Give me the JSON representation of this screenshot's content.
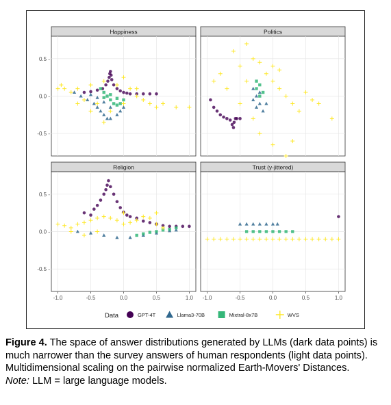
{
  "chart_data": {
    "type": "scatter",
    "panels": [
      {
        "title": "Happiness",
        "show_y_ticks": true,
        "show_x_ticks": false
      },
      {
        "title": "Politics",
        "show_y_ticks": false,
        "show_x_ticks": false
      },
      {
        "title": "Religion",
        "show_y_ticks": true,
        "show_x_ticks": true
      },
      {
        "title": "Trust (y-jittered)",
        "show_y_ticks": false,
        "show_x_ticks": true
      }
    ],
    "xlim": [
      -1.1,
      1.1
    ],
    "ylim": [
      -0.8,
      0.8
    ],
    "x_ticks": [
      {
        "value": -1.0,
        "label": "-1.0"
      },
      {
        "value": -0.5,
        "label": "-0.5"
      },
      {
        "value": 0.0,
        "label": "0.0"
      },
      {
        "value": 0.5,
        "label": "0.5"
      },
      {
        "value": 1.0,
        "label": "1.0"
      }
    ],
    "y_ticks": [
      {
        "value": 0.5,
        "label": "0.5 -"
      },
      {
        "value": 0.0,
        "label": "0.0 -"
      },
      {
        "value": -0.5,
        "label": "-0.5 -"
      }
    ],
    "grid": true,
    "legend": {
      "title": "Data",
      "position": "bottom",
      "entries": [
        {
          "label": "GPT-4T",
          "color": "#440154",
          "shape": "circle"
        },
        {
          "label": "Llama3-70B",
          "color": "#31688e",
          "shape": "triangle"
        },
        {
          "label": "Mixtral-8x7B",
          "color": "#35b779",
          "shape": "square"
        },
        {
          "label": "WVS",
          "color": "#fde725",
          "shape": "plus"
        }
      ]
    },
    "series": [
      {
        "name": "GPT-4T",
        "color": "#440154",
        "shape": "circle",
        "panels": {
          "Happiness": [
            [
              -0.6,
              0.05
            ],
            [
              -0.5,
              0.06
            ],
            [
              -0.4,
              0.08
            ],
            [
              -0.32,
              0.1
            ],
            [
              -0.27,
              0.15
            ],
            [
              -0.24,
              0.2
            ],
            [
              -0.22,
              0.25
            ],
            [
              -0.21,
              0.3
            ],
            [
              -0.2,
              0.33
            ],
            [
              -0.19,
              0.28
            ],
            [
              -0.18,
              0.22
            ],
            [
              -0.15,
              0.15
            ],
            [
              -0.1,
              0.1
            ],
            [
              -0.05,
              0.07
            ],
            [
              0,
              0.05
            ],
            [
              0.05,
              0.04
            ],
            [
              0.1,
              0.03
            ],
            [
              0.2,
              0.03
            ],
            [
              0.3,
              0.03
            ],
            [
              0.4,
              0.03
            ],
            [
              0.5,
              0.03
            ]
          ],
          "Politics": [
            [
              -0.95,
              -0.05
            ],
            [
              -0.9,
              -0.15
            ],
            [
              -0.85,
              -0.2
            ],
            [
              -0.8,
              -0.25
            ],
            [
              -0.75,
              -0.28
            ],
            [
              -0.7,
              -0.3
            ],
            [
              -0.65,
              -0.32
            ],
            [
              -0.62,
              -0.38
            ],
            [
              -0.6,
              -0.42
            ],
            [
              -0.59,
              -0.35
            ],
            [
              -0.57,
              -0.3
            ],
            [
              -0.55,
              -0.3
            ],
            [
              -0.5,
              -0.3
            ]
          ],
          "Religion": [
            [
              -0.6,
              0.25
            ],
            [
              -0.5,
              0.22
            ],
            [
              -0.45,
              0.3
            ],
            [
              -0.4,
              0.35
            ],
            [
              -0.35,
              0.42
            ],
            [
              -0.3,
              0.5
            ],
            [
              -0.27,
              0.56
            ],
            [
              -0.25,
              0.62
            ],
            [
              -0.23,
              0.68
            ],
            [
              -0.2,
              0.6
            ],
            [
              -0.15,
              0.5
            ],
            [
              -0.1,
              0.4
            ],
            [
              -0.05,
              0.32
            ],
            [
              0,
              0.26
            ],
            [
              0.05,
              0.22
            ],
            [
              0.1,
              0.2
            ],
            [
              0.2,
              0.18
            ],
            [
              0.3,
              0.14
            ],
            [
              0.4,
              0.12
            ],
            [
              0.5,
              0.1
            ],
            [
              0.6,
              0.08
            ],
            [
              0.7,
              0.07
            ],
            [
              0.8,
              0.07
            ],
            [
              0.9,
              0.07
            ],
            [
              1.0,
              0.07
            ]
          ],
          "Trust (y-jittered)": [
            [
              1.0,
              0.2
            ]
          ]
        }
      },
      {
        "name": "Llama3-70B",
        "color": "#31688e",
        "shape": "triangle",
        "panels": {
          "Happiness": [
            [
              -0.75,
              0.05
            ],
            [
              -0.65,
              0.0
            ],
            [
              -0.55,
              -0.05
            ],
            [
              -0.45,
              -0.1
            ],
            [
              -0.4,
              -0.15
            ],
            [
              -0.35,
              -0.2
            ],
            [
              -0.3,
              -0.25
            ],
            [
              -0.25,
              -0.3
            ],
            [
              -0.2,
              -0.3
            ],
            [
              -0.1,
              -0.25
            ],
            [
              -0.05,
              -0.2
            ],
            [
              0.0,
              -0.15
            ],
            [
              -0.5,
              0.02
            ],
            [
              -0.4,
              -0.02
            ],
            [
              -0.3,
              -0.08
            ],
            [
              -0.2,
              -0.15
            ]
          ],
          "Politics": [
            [
              -0.3,
              0.1
            ],
            [
              -0.25,
              0.0
            ],
            [
              -0.2,
              -0.1
            ],
            [
              -0.15,
              -0.2
            ],
            [
              -0.1,
              -0.1
            ],
            [
              -0.2,
              0.05
            ],
            [
              -0.3,
              -0.05
            ],
            [
              -0.25,
              -0.15
            ]
          ],
          "Religion": [
            [
              -0.7,
              0.0
            ],
            [
              -0.5,
              -0.02
            ],
            [
              -0.3,
              -0.05
            ],
            [
              -0.1,
              -0.08
            ],
            [
              0.1,
              -0.08
            ],
            [
              0.3,
              -0.05
            ],
            [
              0.5,
              -0.02
            ],
            [
              0.7,
              0.01
            ],
            [
              0.8,
              0.02
            ]
          ],
          "Trust (y-jittered)": [
            [
              -0.5,
              0.1
            ],
            [
              -0.4,
              0.1
            ],
            [
              -0.3,
              0.1
            ],
            [
              -0.2,
              0.1
            ],
            [
              -0.1,
              0.1
            ],
            [
              0.0,
              0.1
            ],
            [
              0.07,
              0.1
            ]
          ]
        }
      },
      {
        "name": "Mixtral-8x7B",
        "color": "#35b779",
        "shape": "square",
        "panels": {
          "Happiness": [
            [
              -0.35,
              0.1
            ],
            [
              -0.3,
              0.05
            ],
            [
              -0.25,
              0.0
            ],
            [
              -0.2,
              -0.05
            ],
            [
              -0.15,
              -0.1
            ],
            [
              -0.1,
              -0.12
            ],
            [
              -0.05,
              -0.1
            ],
            [
              0.0,
              -0.05
            ],
            [
              -0.3,
              -0.02
            ],
            [
              -0.2,
              0.02
            ],
            [
              -0.1,
              -0.03
            ]
          ],
          "Politics": [
            [
              -0.25,
              0.2
            ],
            [
              -0.2,
              0.15
            ],
            [
              -0.15,
              0.05
            ],
            [
              -0.2,
              0.0
            ],
            [
              -0.25,
              0.1
            ]
          ],
          "Religion": [
            [
              0.2,
              -0.05
            ],
            [
              0.3,
              -0.03
            ],
            [
              0.4,
              -0.01
            ],
            [
              0.5,
              0.0
            ],
            [
              0.6,
              0.02
            ],
            [
              0.7,
              0.03
            ],
            [
              0.8,
              0.05
            ]
          ],
          "Trust (y-jittered)": [
            [
              -0.4,
              0.0
            ],
            [
              -0.3,
              0.0
            ],
            [
              -0.2,
              0.0
            ],
            [
              -0.1,
              0.0
            ],
            [
              0.0,
              0.0
            ],
            [
              0.1,
              0.0
            ],
            [
              0.2,
              0.0
            ],
            [
              0.3,
              0.0
            ]
          ]
        }
      },
      {
        "name": "WVS",
        "color": "#fde725",
        "shape": "plus",
        "panels": {
          "Happiness": [
            [
              -1.0,
              0.1
            ],
            [
              -0.9,
              0.1
            ],
            [
              -0.8,
              0.05
            ],
            [
              -0.7,
              0.1
            ],
            [
              -0.6,
              -0.05
            ],
            [
              -0.5,
              0.15
            ],
            [
              -0.4,
              -0.1
            ],
            [
              -0.3,
              0.2
            ],
            [
              -0.2,
              -0.2
            ],
            [
              -0.1,
              0.15
            ],
            [
              0.0,
              -0.1
            ],
            [
              0.1,
              0.1
            ],
            [
              0.2,
              0.0
            ],
            [
              0.3,
              -0.05
            ],
            [
              0.4,
              -0.1
            ],
            [
              0.5,
              -0.15
            ],
            [
              0.6,
              -0.1
            ],
            [
              0.8,
              -0.15
            ],
            [
              1.0,
              -0.15
            ],
            [
              -0.95,
              0.15
            ],
            [
              -0.7,
              -0.1
            ],
            [
              -0.5,
              -0.2
            ],
            [
              -0.3,
              -0.35
            ],
            [
              0.0,
              0.25
            ],
            [
              0.2,
              0.1
            ]
          ],
          "Politics": [
            [
              -0.8,
              0.3
            ],
            [
              -0.6,
              0.6
            ],
            [
              -0.5,
              0.4
            ],
            [
              -0.4,
              0.7
            ],
            [
              -0.3,
              0.5
            ],
            [
              -0.2,
              0.45
            ],
            [
              -0.1,
              0.3
            ],
            [
              0.0,
              0.2
            ],
            [
              0.1,
              0.1
            ],
            [
              0.2,
              0.0
            ],
            [
              0.3,
              -0.1
            ],
            [
              0.4,
              -0.2
            ],
            [
              0.5,
              0.05
            ],
            [
              0.6,
              -0.05
            ],
            [
              0.7,
              -0.1
            ],
            [
              0.9,
              -0.3
            ],
            [
              -0.9,
              0.2
            ],
            [
              -0.7,
              0.1
            ],
            [
              -0.5,
              -0.1
            ],
            [
              -0.3,
              -0.3
            ],
            [
              -0.2,
              -0.5
            ],
            [
              0.0,
              -0.65
            ],
            [
              0.3,
              -0.6
            ],
            [
              0.2,
              -0.8
            ],
            [
              0.0,
              0.4
            ],
            [
              -0.4,
              0.2
            ],
            [
              0.1,
              0.35
            ]
          ],
          "Religion": [
            [
              -1.0,
              0.1
            ],
            [
              -0.9,
              0.08
            ],
            [
              -0.8,
              0.05
            ],
            [
              -0.7,
              0.1
            ],
            [
              -0.6,
              0.12
            ],
            [
              -0.5,
              0.15
            ],
            [
              -0.4,
              0.18
            ],
            [
              -0.3,
              0.2
            ],
            [
              -0.2,
              0.18
            ],
            [
              -0.1,
              0.15
            ],
            [
              0.0,
              0.1
            ],
            [
              0.1,
              0.12
            ],
            [
              0.2,
              0.15
            ],
            [
              0.3,
              0.2
            ],
            [
              0.4,
              0.18
            ],
            [
              0.5,
              0.1
            ],
            [
              0.6,
              0.05
            ],
            [
              -0.8,
              0.0
            ],
            [
              -0.6,
              -0.05
            ],
            [
              -0.4,
              0.0
            ],
            [
              0.0,
              0.25
            ],
            [
              0.5,
              0.25
            ]
          ],
          "Trust (y-jittered)": [
            [
              -1.0,
              -0.1
            ],
            [
              -0.9,
              -0.1
            ],
            [
              -0.8,
              -0.1
            ],
            [
              -0.7,
              -0.1
            ],
            [
              -0.6,
              -0.1
            ],
            [
              -0.5,
              -0.1
            ],
            [
              -0.4,
              -0.1
            ],
            [
              -0.3,
              -0.1
            ],
            [
              -0.2,
              -0.1
            ],
            [
              -0.1,
              -0.1
            ],
            [
              0.0,
              -0.1
            ],
            [
              0.1,
              -0.1
            ],
            [
              0.2,
              -0.1
            ],
            [
              0.3,
              -0.1
            ],
            [
              0.4,
              -0.1
            ],
            [
              0.5,
              -0.1
            ],
            [
              0.6,
              -0.1
            ],
            [
              0.7,
              -0.1
            ],
            [
              0.8,
              -0.1
            ],
            [
              0.9,
              -0.1
            ],
            [
              1.0,
              -0.1
            ]
          ]
        }
      }
    ]
  },
  "caption": {
    "figure_label": "Figure 4.",
    "text": " The space of answer distributions generated by LLMs (dark data points) is much narrower than the survey answers of human respondents (light data points). Multidimensional scaling on the pairwise normalized Earth-Movers' Distances.",
    "note_label": "Note:",
    "note_text": " LLM = large language models."
  }
}
